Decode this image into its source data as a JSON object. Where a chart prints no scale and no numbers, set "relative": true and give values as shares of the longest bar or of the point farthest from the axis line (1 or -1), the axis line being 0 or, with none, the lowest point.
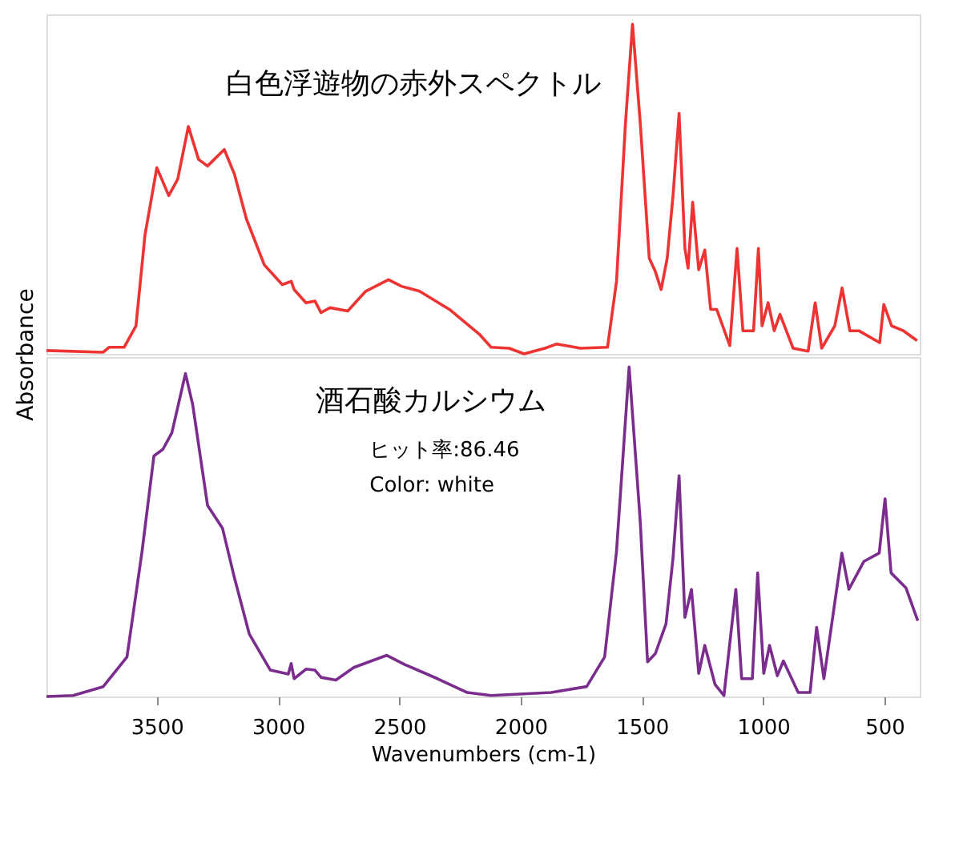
{
  "chart_data": [
    {
      "type": "line",
      "relative": true,
      "tick_labels": false,
      "ylabel": "Absorbance",
      "xlim": [
        3955,
        355
      ],
      "annotations": [
        "白色浮遊物の赤外スペクトル"
      ],
      "series": [
        {
          "color": "#ee3333",
          "x": [
            3955,
            3721,
            3697,
            3635,
            3586,
            3549,
            3500,
            3451,
            3414,
            3370,
            3328,
            3291,
            3222,
            3180,
            3131,
            3057,
            2983,
            2946,
            2934,
            2885,
            2848,
            2823,
            2786,
            2713,
            2639,
            2545,
            2491,
            2417,
            2294,
            2171,
            2122,
            2048,
            1986,
            1900,
            1851,
            1753,
            1642,
            1605,
            1568,
            1539,
            1507,
            1470,
            1445,
            1421,
            1396,
            1372,
            1347,
            1323,
            1310,
            1291,
            1266,
            1241,
            1217,
            1192,
            1138,
            1108,
            1084,
            1040,
            1020,
            1005,
            980,
            955,
            931,
            877,
            815,
            786,
            759,
            705,
            675,
            643,
            606,
            520,
            503,
            471,
            422,
            366
          ],
          "values": [
            0.01,
            0.005,
            0.02,
            0.02,
            0.085,
            0.36,
            0.565,
            0.48,
            0.53,
            0.69,
            0.59,
            0.57,
            0.62,
            0.545,
            0.41,
            0.27,
            0.21,
            0.22,
            0.195,
            0.155,
            0.16,
            0.125,
            0.14,
            0.13,
            0.19,
            0.225,
            0.205,
            0.19,
            0.135,
            0.06,
            0.02,
            0.017,
            0,
            0.017,
            0.03,
            0.017,
            0.02,
            0.22,
            0.7,
            1.0,
            0.7,
            0.29,
            0.25,
            0.195,
            0.29,
            0.48,
            0.73,
            0.32,
            0.26,
            0.46,
            0.255,
            0.315,
            0.135,
            0.135,
            0.025,
            0.32,
            0.07,
            0.07,
            0.32,
            0.085,
            0.155,
            0.07,
            0.12,
            0.017,
            0.008,
            0.155,
            0.017,
            0.085,
            0.2,
            0.07,
            0.07,
            0.034,
            0.15,
            0.085,
            0.07,
            0.04
          ]
        }
      ]
    },
    {
      "type": "line",
      "relative": true,
      "tick_labels": "x",
      "xlabel": "Wavenumbers (cm-1)",
      "xlim": [
        3955,
        355
      ],
      "xticks": [
        3500,
        3000,
        2500,
        2000,
        1500,
        1000,
        500
      ],
      "annotations": [
        "酒石酸カルシウム",
        "ヒット率:86.46",
        "Color:  white"
      ],
      "series": [
        {
          "color": "#7b2d8e",
          "x": [
            3955,
            3845,
            3721,
            3623,
            3561,
            3512,
            3475,
            3438,
            3382,
            3352,
            3291,
            3229,
            3180,
            3119,
            3032,
            2958,
            2946,
            2934,
            2885,
            2848,
            2823,
            2762,
            2688,
            2552,
            2478,
            2343,
            2220,
            2122,
            1875,
            1728,
            1654,
            1605,
            1553,
            1507,
            1477,
            1445,
            1401,
            1372,
            1347,
            1323,
            1296,
            1266,
            1241,
            1199,
            1162,
            1113,
            1089,
            1045,
            1023,
            998,
            974,
            942,
            917,
            856,
            807,
            780,
            750,
            676,
            647,
            585,
            522,
            498,
            473,
            412,
            363
          ],
          "values": [
            0,
            0.003,
            0.03,
            0.12,
            0.44,
            0.73,
            0.75,
            0.8,
            0.98,
            0.885,
            0.58,
            0.51,
            0.36,
            0.19,
            0.08,
            0.068,
            0.1,
            0.054,
            0.083,
            0.08,
            0.058,
            0.05,
            0.088,
            0.125,
            0.097,
            0.054,
            0.012,
            0.003,
            0.012,
            0.03,
            0.12,
            0.44,
            1.0,
            0.53,
            0.105,
            0.13,
            0.22,
            0.42,
            0.67,
            0.24,
            0.325,
            0.07,
            0.155,
            0.037,
            0.003,
            0.325,
            0.054,
            0.054,
            0.375,
            0.07,
            0.155,
            0.063,
            0.108,
            0.012,
            0.012,
            0.21,
            0.054,
            0.435,
            0.325,
            0.41,
            0.435,
            0.6,
            0.375,
            0.33,
            0.23
          ]
        }
      ]
    }
  ]
}
